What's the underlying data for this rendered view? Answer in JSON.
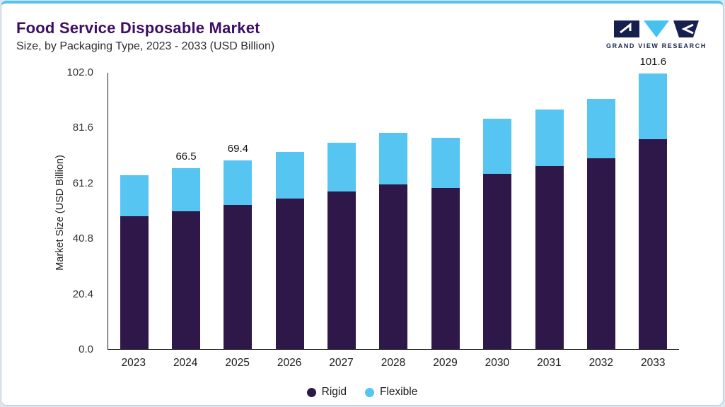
{
  "header": {
    "title": "Food Service Disposable Market",
    "subtitle": "Size, by Packaging Type, 2023 - 2033 (USD Billion)"
  },
  "logo": {
    "text": "GRAND VIEW RESEARCH"
  },
  "colors": {
    "accent_top_bar": "#55c3ef",
    "title_text": "#3e0e63",
    "rigid": "#2e184a",
    "flexible": "#56c5f1"
  },
  "chart_data": {
    "type": "bar",
    "stacked": true,
    "title": "Food Service Disposable Market Size, by Packaging Type, 2023 - 2033 (USD Billion)",
    "xlabel": "",
    "ylabel": "Market Size (USD Billion)",
    "ylim": [
      0,
      102
    ],
    "yticks": [
      0.0,
      20.4,
      40.8,
      61.2,
      81.6,
      102.0
    ],
    "grid": false,
    "legend_position": "bottom",
    "categories": [
      "2023",
      "2024",
      "2025",
      "2026",
      "2027",
      "2028",
      "2029",
      "2030",
      "2031",
      "2032",
      "2033"
    ],
    "series": [
      {
        "name": "Rigid",
        "color": "#2e184a",
        "values": [
          48.9,
          50.8,
          53.0,
          55.4,
          58.0,
          60.7,
          59.3,
          64.6,
          67.3,
          70.2,
          77.4
        ]
      },
      {
        "name": "Flexible",
        "color": "#56c5f1",
        "values": [
          15.1,
          15.7,
          16.4,
          17.3,
          18.1,
          19.0,
          18.5,
          20.2,
          21.0,
          21.9,
          24.2
        ]
      }
    ],
    "totals": [
      64.0,
      66.5,
      69.4,
      72.7,
      76.1,
      79.7,
      77.8,
      84.8,
      88.3,
      92.1,
      101.6
    ],
    "bar_labels": {
      "2024": "66.5",
      "2025": "69.4",
      "2033": "101.6"
    }
  }
}
